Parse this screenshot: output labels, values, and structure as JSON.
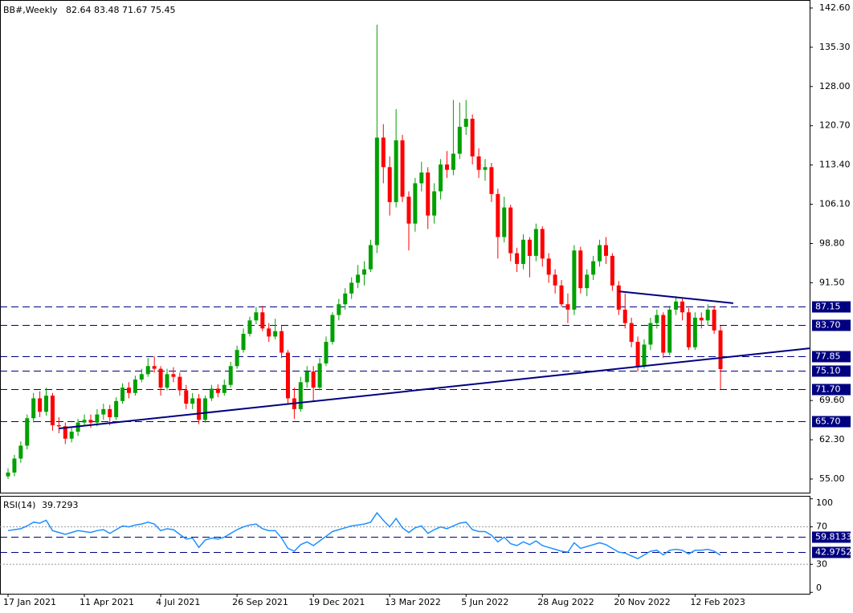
{
  "chart_data": {
    "type": "candlestick",
    "title": "BB#,Weekly",
    "categories": [
      "17 Jan 2021",
      null,
      null,
      null,
      null,
      null,
      null,
      null,
      null,
      null,
      null,
      null,
      "11 Apr 2021",
      null,
      null,
      null,
      null,
      null,
      null,
      null,
      null,
      null,
      null,
      null,
      "4 Jul 2021",
      null,
      null,
      null,
      null,
      null,
      null,
      null,
      null,
      null,
      null,
      null,
      "26 Sep 2021",
      null,
      null,
      null,
      null,
      null,
      null,
      null,
      null,
      null,
      null,
      null,
      "19 Dec 2021",
      null,
      null,
      null,
      null,
      null,
      null,
      null,
      null,
      null,
      null,
      null,
      "13 Mar 2022",
      null,
      null,
      null,
      null,
      null,
      null,
      null,
      null,
      null,
      null,
      null,
      "5 Jun 2022",
      null,
      null,
      null,
      null,
      null,
      null,
      null,
      null,
      null,
      null,
      null,
      "28 Aug 2022",
      null,
      null,
      null,
      null,
      null,
      null,
      null,
      null,
      null,
      null,
      null,
      "20 Nov 2022",
      null,
      null,
      null,
      null,
      null,
      null,
      null,
      null,
      null,
      null,
      null,
      "12 Feb 2023",
      null,
      null,
      null,
      null
    ],
    "candles": [
      [
        55.5,
        57.0,
        55.0,
        56.2
      ],
      [
        56.2,
        59.5,
        55.5,
        58.8
      ],
      [
        58.8,
        62.0,
        58.0,
        61.2
      ],
      [
        61.2,
        67.0,
        60.5,
        66.3
      ],
      [
        66.3,
        71.0,
        65.5,
        70.0
      ],
      [
        70.0,
        71.3,
        66.5,
        67.5
      ],
      [
        67.5,
        72.0,
        66.8,
        70.5
      ],
      [
        70.5,
        71.0,
        64.0,
        65.0
      ],
      [
        65.0,
        66.5,
        63.5,
        64.8
      ],
      [
        64.8,
        65.5,
        61.5,
        62.5
      ],
      [
        62.5,
        64.5,
        61.8,
        63.8
      ],
      [
        63.8,
        66.2,
        63.0,
        65.5
      ],
      [
        65.5,
        67.0,
        64.8,
        66.0
      ],
      [
        66.0,
        67.0,
        64.5,
        65.5
      ],
      [
        65.5,
        68.0,
        64.8,
        67.0
      ],
      [
        67.0,
        69.0,
        66.0,
        68.0
      ],
      [
        68.0,
        68.8,
        65.0,
        66.5
      ],
      [
        66.5,
        70.2,
        66.0,
        69.5
      ],
      [
        69.5,
        72.8,
        69.0,
        72.0
      ],
      [
        72.0,
        73.0,
        70.0,
        71.0
      ],
      [
        71.0,
        74.2,
        70.5,
        73.5
      ],
      [
        73.5,
        75.5,
        73.0,
        74.5
      ],
      [
        74.5,
        77.5,
        74.0,
        76.0
      ],
      [
        76.0,
        77.8,
        74.8,
        75.5
      ],
      [
        75.5,
        76.0,
        70.5,
        72.0
      ],
      [
        72.0,
        75.5,
        71.5,
        74.5
      ],
      [
        74.5,
        75.8,
        73.0,
        74.0
      ],
      [
        74.0,
        74.8,
        70.5,
        71.5
      ],
      [
        71.5,
        72.5,
        68.0,
        69.0
      ],
      [
        69.0,
        71.0,
        68.0,
        70.0
      ],
      [
        70.0,
        70.8,
        65.2,
        66.0
      ],
      [
        66.0,
        70.5,
        65.5,
        70.0
      ],
      [
        70.0,
        72.5,
        69.5,
        71.8
      ],
      [
        71.8,
        72.6,
        70.2,
        71.0
      ],
      [
        71.0,
        73.5,
        70.5,
        72.5
      ],
      [
        72.5,
        76.8,
        72.0,
        76.0
      ],
      [
        76.0,
        79.8,
        75.5,
        79.0
      ],
      [
        79.0,
        83.0,
        78.5,
        82.0
      ],
      [
        82.0,
        85.2,
        81.5,
        84.5
      ],
      [
        84.5,
        87.0,
        83.8,
        86.0
      ],
      [
        86.0,
        87.2,
        82.5,
        83.0
      ],
      [
        83.0,
        84.0,
        80.5,
        81.5
      ],
      [
        81.5,
        84.8,
        81.0,
        82.5
      ],
      [
        82.5,
        83.5,
        77.5,
        78.5
      ],
      [
        78.5,
        79.0,
        69.0,
        70.0
      ],
      [
        70.0,
        72.0,
        66.2,
        68.0
      ],
      [
        68.0,
        74.0,
        67.5,
        73.0
      ],
      [
        73.0,
        76.0,
        72.0,
        75.0
      ],
      [
        75.0,
        76.0,
        69.5,
        72.0
      ],
      [
        72.0,
        77.5,
        71.5,
        76.5
      ],
      [
        76.5,
        81.5,
        76.0,
        80.5
      ],
      [
        80.5,
        86.0,
        80.0,
        85.5
      ],
      [
        85.5,
        88.5,
        84.5,
        87.5
      ],
      [
        87.5,
        90.5,
        86.5,
        89.5
      ],
      [
        89.5,
        92.5,
        88.5,
        91.5
      ],
      [
        91.5,
        94.8,
        90.5,
        93.0
      ],
      [
        93.0,
        95.5,
        91.0,
        94.0
      ],
      [
        94.0,
        99.5,
        93.5,
        98.5
      ],
      [
        98.5,
        139.5,
        97.0,
        118.5
      ],
      [
        118.5,
        121.0,
        110.0,
        113.0
      ],
      [
        113.0,
        115.0,
        104.0,
        106.5
      ],
      [
        106.5,
        123.8,
        105.5,
        118.0
      ],
      [
        118.0,
        119.0,
        106.5,
        107.5
      ],
      [
        107.5,
        108.5,
        97.5,
        102.5
      ],
      [
        102.5,
        111.0,
        101.0,
        110.0
      ],
      [
        110.0,
        114.0,
        108.5,
        112.0
      ],
      [
        112.0,
        113.0,
        101.5,
        104.0
      ],
      [
        104.0,
        110.0,
        102.5,
        108.5
      ],
      [
        108.5,
        114.5,
        107.0,
        113.5
      ],
      [
        113.5,
        116.0,
        111.0,
        112.5
      ],
      [
        112.5,
        125.5,
        111.5,
        115.5
      ],
      [
        115.5,
        125.0,
        114.5,
        120.5
      ],
      [
        120.5,
        125.5,
        119.0,
        122.0
      ],
      [
        122.0,
        122.8,
        113.5,
        115.0
      ],
      [
        115.0,
        116.5,
        111.0,
        112.5
      ],
      [
        112.5,
        114.5,
        110.5,
        113.0
      ],
      [
        113.0,
        113.8,
        106.5,
        108.0
      ],
      [
        108.0,
        109.0,
        96.0,
        100.0
      ],
      [
        100.0,
        107.5,
        99.0,
        105.5
      ],
      [
        105.5,
        106.0,
        95.5,
        97.0
      ],
      [
        97.0,
        98.0,
        93.5,
        95.0
      ],
      [
        95.0,
        100.5,
        94.0,
        99.5
      ],
      [
        99.5,
        100.0,
        92.5,
        96.5
      ],
      [
        96.5,
        102.5,
        95.5,
        101.5
      ],
      [
        101.5,
        102.0,
        94.5,
        96.0
      ],
      [
        96.0,
        97.0,
        91.5,
        93.0
      ],
      [
        93.0,
        94.0,
        89.5,
        91.0
      ],
      [
        91.0,
        92.0,
        87.0,
        87.5
      ],
      [
        87.5,
        89.5,
        84.0,
        86.5
      ],
      [
        86.5,
        98.5,
        85.5,
        97.5
      ],
      [
        97.5,
        98.2,
        89.5,
        90.5
      ],
      [
        90.5,
        94.0,
        89.0,
        93.0
      ],
      [
        93.0,
        96.5,
        92.0,
        95.5
      ],
      [
        95.5,
        99.5,
        94.5,
        98.5
      ],
      [
        98.5,
        100.0,
        95.0,
        96.5
      ],
      [
        96.5,
        97.0,
        90.0,
        91.0
      ],
      [
        91.0,
        91.8,
        85.5,
        86.5
      ],
      [
        86.5,
        89.5,
        83.0,
        84.0
      ],
      [
        84.0,
        85.0,
        79.5,
        80.5
      ],
      [
        80.5,
        81.5,
        75.0,
        76.0
      ],
      [
        76.0,
        81.0,
        75.5,
        80.0
      ],
      [
        80.0,
        85.0,
        79.0,
        84.0
      ],
      [
        84.0,
        86.5,
        83.0,
        85.5
      ],
      [
        85.5,
        86.0,
        77.5,
        78.5
      ],
      [
        78.5,
        87.2,
        78.0,
        86.5
      ],
      [
        86.5,
        89.0,
        85.5,
        88.0
      ],
      [
        88.0,
        88.5,
        84.5,
        86.0
      ],
      [
        86.0,
        86.8,
        79.0,
        79.5
      ],
      [
        79.5,
        86.0,
        79.0,
        85.0
      ],
      [
        85.0,
        86.0,
        83.0,
        84.5
      ],
      [
        84.5,
        87.5,
        83.5,
        86.5
      ],
      [
        86.5,
        87.2,
        82.0,
        82.64
      ],
      [
        82.64,
        83.48,
        71.67,
        75.45
      ]
    ],
    "up_color": "#00a000",
    "down_color": "#ff0000",
    "ylim": [
      52.46,
      143.94
    ],
    "yticks": [
      {
        "value": 142.6,
        "label": "142.60"
      },
      {
        "value": 135.3,
        "label": "135.30"
      },
      {
        "value": 128,
        "label": "128.00"
      },
      {
        "value": 120.7,
        "label": "120.70"
      },
      {
        "value": 113.4,
        "label": "113.40"
      },
      {
        "value": 106.1,
        "label": "106.10"
      },
      {
        "value": 98.8,
        "label": "98.80"
      },
      {
        "value": 91.5,
        "label": "91.50"
      },
      {
        "value": 69.6,
        "label": "69.60"
      },
      {
        "value": 62.3,
        "label": "62.30"
      },
      {
        "value": 55,
        "label": "55.00"
      }
    ],
    "levels": [
      87.15,
      {
        "value": 83.7,
        "label": "83.70"
      },
      77.85,
      {
        "value": 75.1,
        "label": "75.10"
      },
      {
        "value": 71.7,
        "label": "71.70"
      },
      {
        "value": 65.7,
        "label": "65.70"
      }
    ],
    "level_color": "#000080",
    "trendlines": [
      {
        "color": "#000080",
        "points": [
          [
            8,
            64.4
          ],
          [
            126,
            79.3
          ]
        ]
      },
      {
        "color": "#000080",
        "points": [
          [
            96,
            89.9
          ],
          [
            114,
            87.7
          ]
        ]
      }
    ],
    "rsi": {
      "title": "RSI(14)",
      "color": "#1e90ff",
      "values": [
        66,
        67,
        68,
        71,
        75,
        74,
        77,
        66,
        64,
        62,
        64,
        66,
        65,
        64,
        66,
        67,
        63,
        67,
        71,
        70,
        72,
        73,
        75,
        73,
        66,
        68,
        67,
        62,
        57,
        58,
        48,
        56,
        58,
        57,
        59,
        63,
        67,
        70,
        72,
        73,
        68,
        66,
        66,
        58,
        47,
        44,
        51,
        54,
        50,
        55,
        60,
        65,
        67,
        69,
        71,
        72,
        73,
        75,
        85,
        77,
        70,
        79,
        69,
        64,
        69,
        71,
        63,
        67,
        70,
        68,
        71,
        74,
        75,
        67,
        65,
        65,
        61,
        54,
        59,
        52,
        50,
        54,
        51,
        55,
        50,
        48,
        46,
        44,
        43,
        53,
        47,
        49,
        51,
        53,
        51,
        47,
        43,
        42,
        39,
        36,
        40,
        44,
        45,
        40,
        45,
        46,
        45,
        41,
        45,
        45,
        46,
        44,
        39.7293
      ],
      "ylim": [
        -1.5,
        102.3
      ],
      "yticks": [
        100,
        70,
        30,
        0
      ],
      "dotted": [
        70,
        30
      ],
      "levels": [
        59.8133,
        42.9752
      ]
    }
  }
}
